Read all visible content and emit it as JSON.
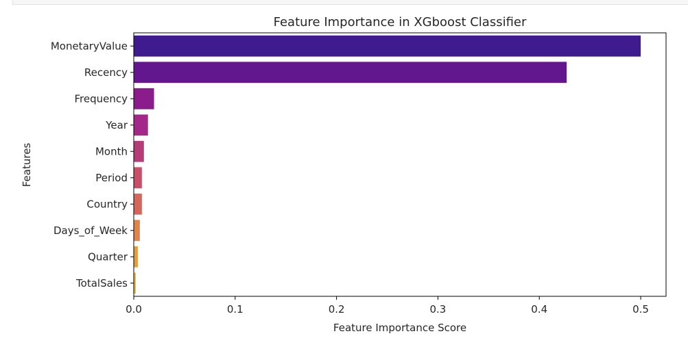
{
  "chart_data": {
    "type": "bar",
    "orientation": "horizontal",
    "title": "Feature Importance in XGboost Classifier",
    "xlabel": "Feature Importance Score",
    "ylabel": "Features",
    "categories": [
      "MonetaryValue",
      "Recency",
      "Frequency",
      "Year",
      "Month",
      "Period",
      "Country",
      "Days_of_Week",
      "Quarter",
      "TotalSales"
    ],
    "values": [
      0.5,
      0.427,
      0.02,
      0.014,
      0.01,
      0.008,
      0.008,
      0.006,
      0.004,
      0.002
    ],
    "colors": [
      "#3e1c8f",
      "#63178e",
      "#8a1c8c",
      "#a3288a",
      "#b63c78",
      "#c94f68",
      "#d6665c",
      "#e2834a",
      "#e89d3c",
      "#ebb630"
    ],
    "xlim": [
      0,
      0.525
    ],
    "xticks": [
      0.0,
      0.1,
      0.2,
      0.3,
      0.4,
      0.5
    ],
    "xtick_labels": [
      "0.0",
      "0.1",
      "0.2",
      "0.3",
      "0.4",
      "0.5"
    ],
    "grid": false,
    "legend": "none"
  }
}
